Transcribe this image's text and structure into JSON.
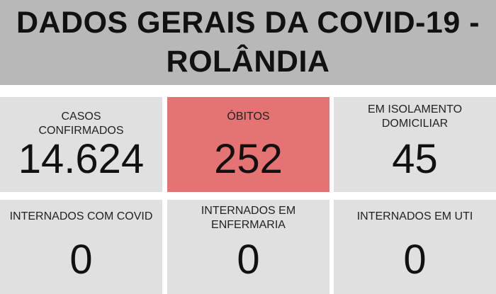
{
  "title": "DADOS GERAIS DA COVID-19 - ROLÂNDIA",
  "cards": [
    {
      "label": "CASOS CONFIRMADOS",
      "value": "14.624"
    },
    {
      "label": "ÓBITOS",
      "value": "252"
    },
    {
      "label": "EM ISOLAMENTO DOMICILIAR",
      "value": "45"
    },
    {
      "label": "INTERNADOS COM COVID",
      "value": "0"
    },
    {
      "label": "INTERNADOS EM ENFERMARIA",
      "value": "0"
    },
    {
      "label": "INTERNADOS EM UTI",
      "value": "0"
    }
  ],
  "colors": {
    "header": "#b8b8b8",
    "card": "#e0e0e0",
    "highlight": "#e57373"
  }
}
